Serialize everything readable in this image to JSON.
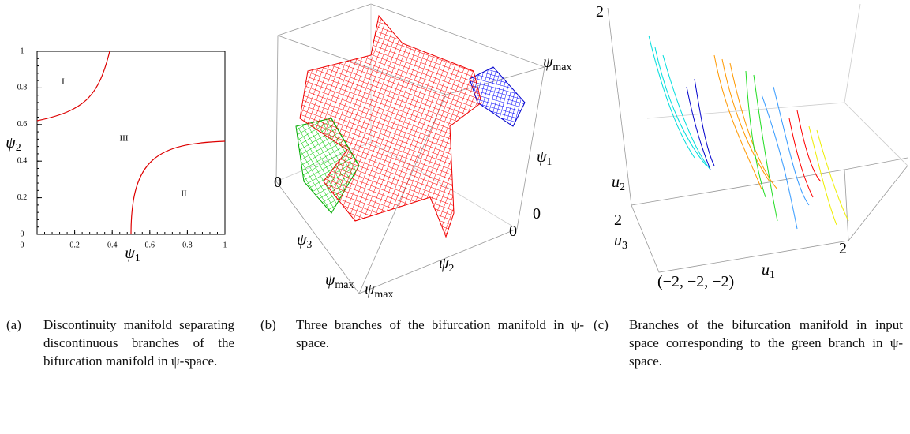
{
  "panel_a": {
    "y_ticks": [
      "1",
      "0.8",
      "0.6",
      "0.4",
      "0.2",
      "0"
    ],
    "x_ticks": [
      "0",
      "0.2",
      "0.4",
      "0.6",
      "0.8",
      "1"
    ],
    "x_label": {
      "base": "ψ",
      "sub": "1"
    },
    "y_label": {
      "base": "ψ",
      "sub": "2"
    },
    "regions": [
      "I",
      "II",
      "III"
    ],
    "caption": {
      "tag": "(a)",
      "text": "Discontinuity manifold separating discontinuous branches of the bifurcation manifold in ψ-space."
    }
  },
  "panel_b": {
    "labels": [
      {
        "base": "ψ",
        "sub": "max"
      },
      {
        "base": "ψ",
        "sub": "1"
      },
      {
        "base": "0",
        "sub": ""
      },
      {
        "base": "0",
        "sub": ""
      },
      {
        "base": "0",
        "sub": ""
      },
      {
        "base": "ψ",
        "sub": "3"
      },
      {
        "base": "ψ",
        "sub": "2"
      },
      {
        "base": "ψ",
        "sub": "max"
      },
      {
        "base": "ψ",
        "sub": "max"
      }
    ],
    "caption": {
      "tag": "(b)",
      "text": "Three branches of the bifurcation manifold in ψ-space."
    }
  },
  "panel_c": {
    "labels": [
      {
        "base": "2",
        "sub": ""
      },
      {
        "base": "u",
        "sub": "2"
      },
      {
        "base": "2",
        "sub": ""
      },
      {
        "base": "u",
        "sub": "3"
      },
      {
        "base": "u",
        "sub": "1"
      },
      {
        "base": "(−2, −2, −2)",
        "sub": ""
      },
      {
        "base": "2",
        "sub": ""
      }
    ],
    "caption": {
      "tag": "(c)",
      "text": "Branches of the bifurcation manifold in input space corresponding to the green branch in ψ-space."
    }
  }
}
